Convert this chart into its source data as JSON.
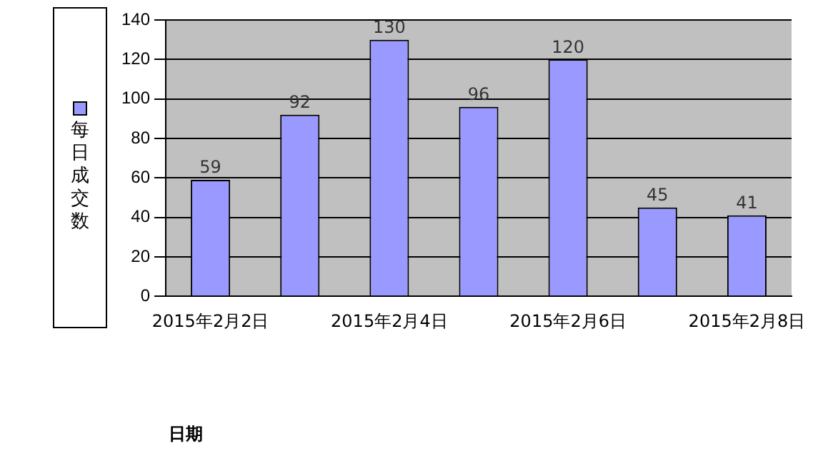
{
  "chart_data": {
    "type": "bar",
    "annotations": [
      "日期"
    ],
    "categories": [
      "2015年2月2日",
      null,
      "2015年2月4日",
      null,
      "2015年2月6日",
      null,
      "2015年2月8日"
    ],
    "series": [
      {
        "name": "每日成交数",
        "color": "#9999ff",
        "values": [
          59,
          92,
          130,
          96,
          120,
          45,
          41
        ]
      }
    ],
    "ylim": [
      0,
      140
    ],
    "yticks": [
      0,
      20,
      40,
      60,
      80,
      100,
      120,
      140
    ],
    "grid": "y",
    "legend": "left",
    "data_labels": true
  }
}
